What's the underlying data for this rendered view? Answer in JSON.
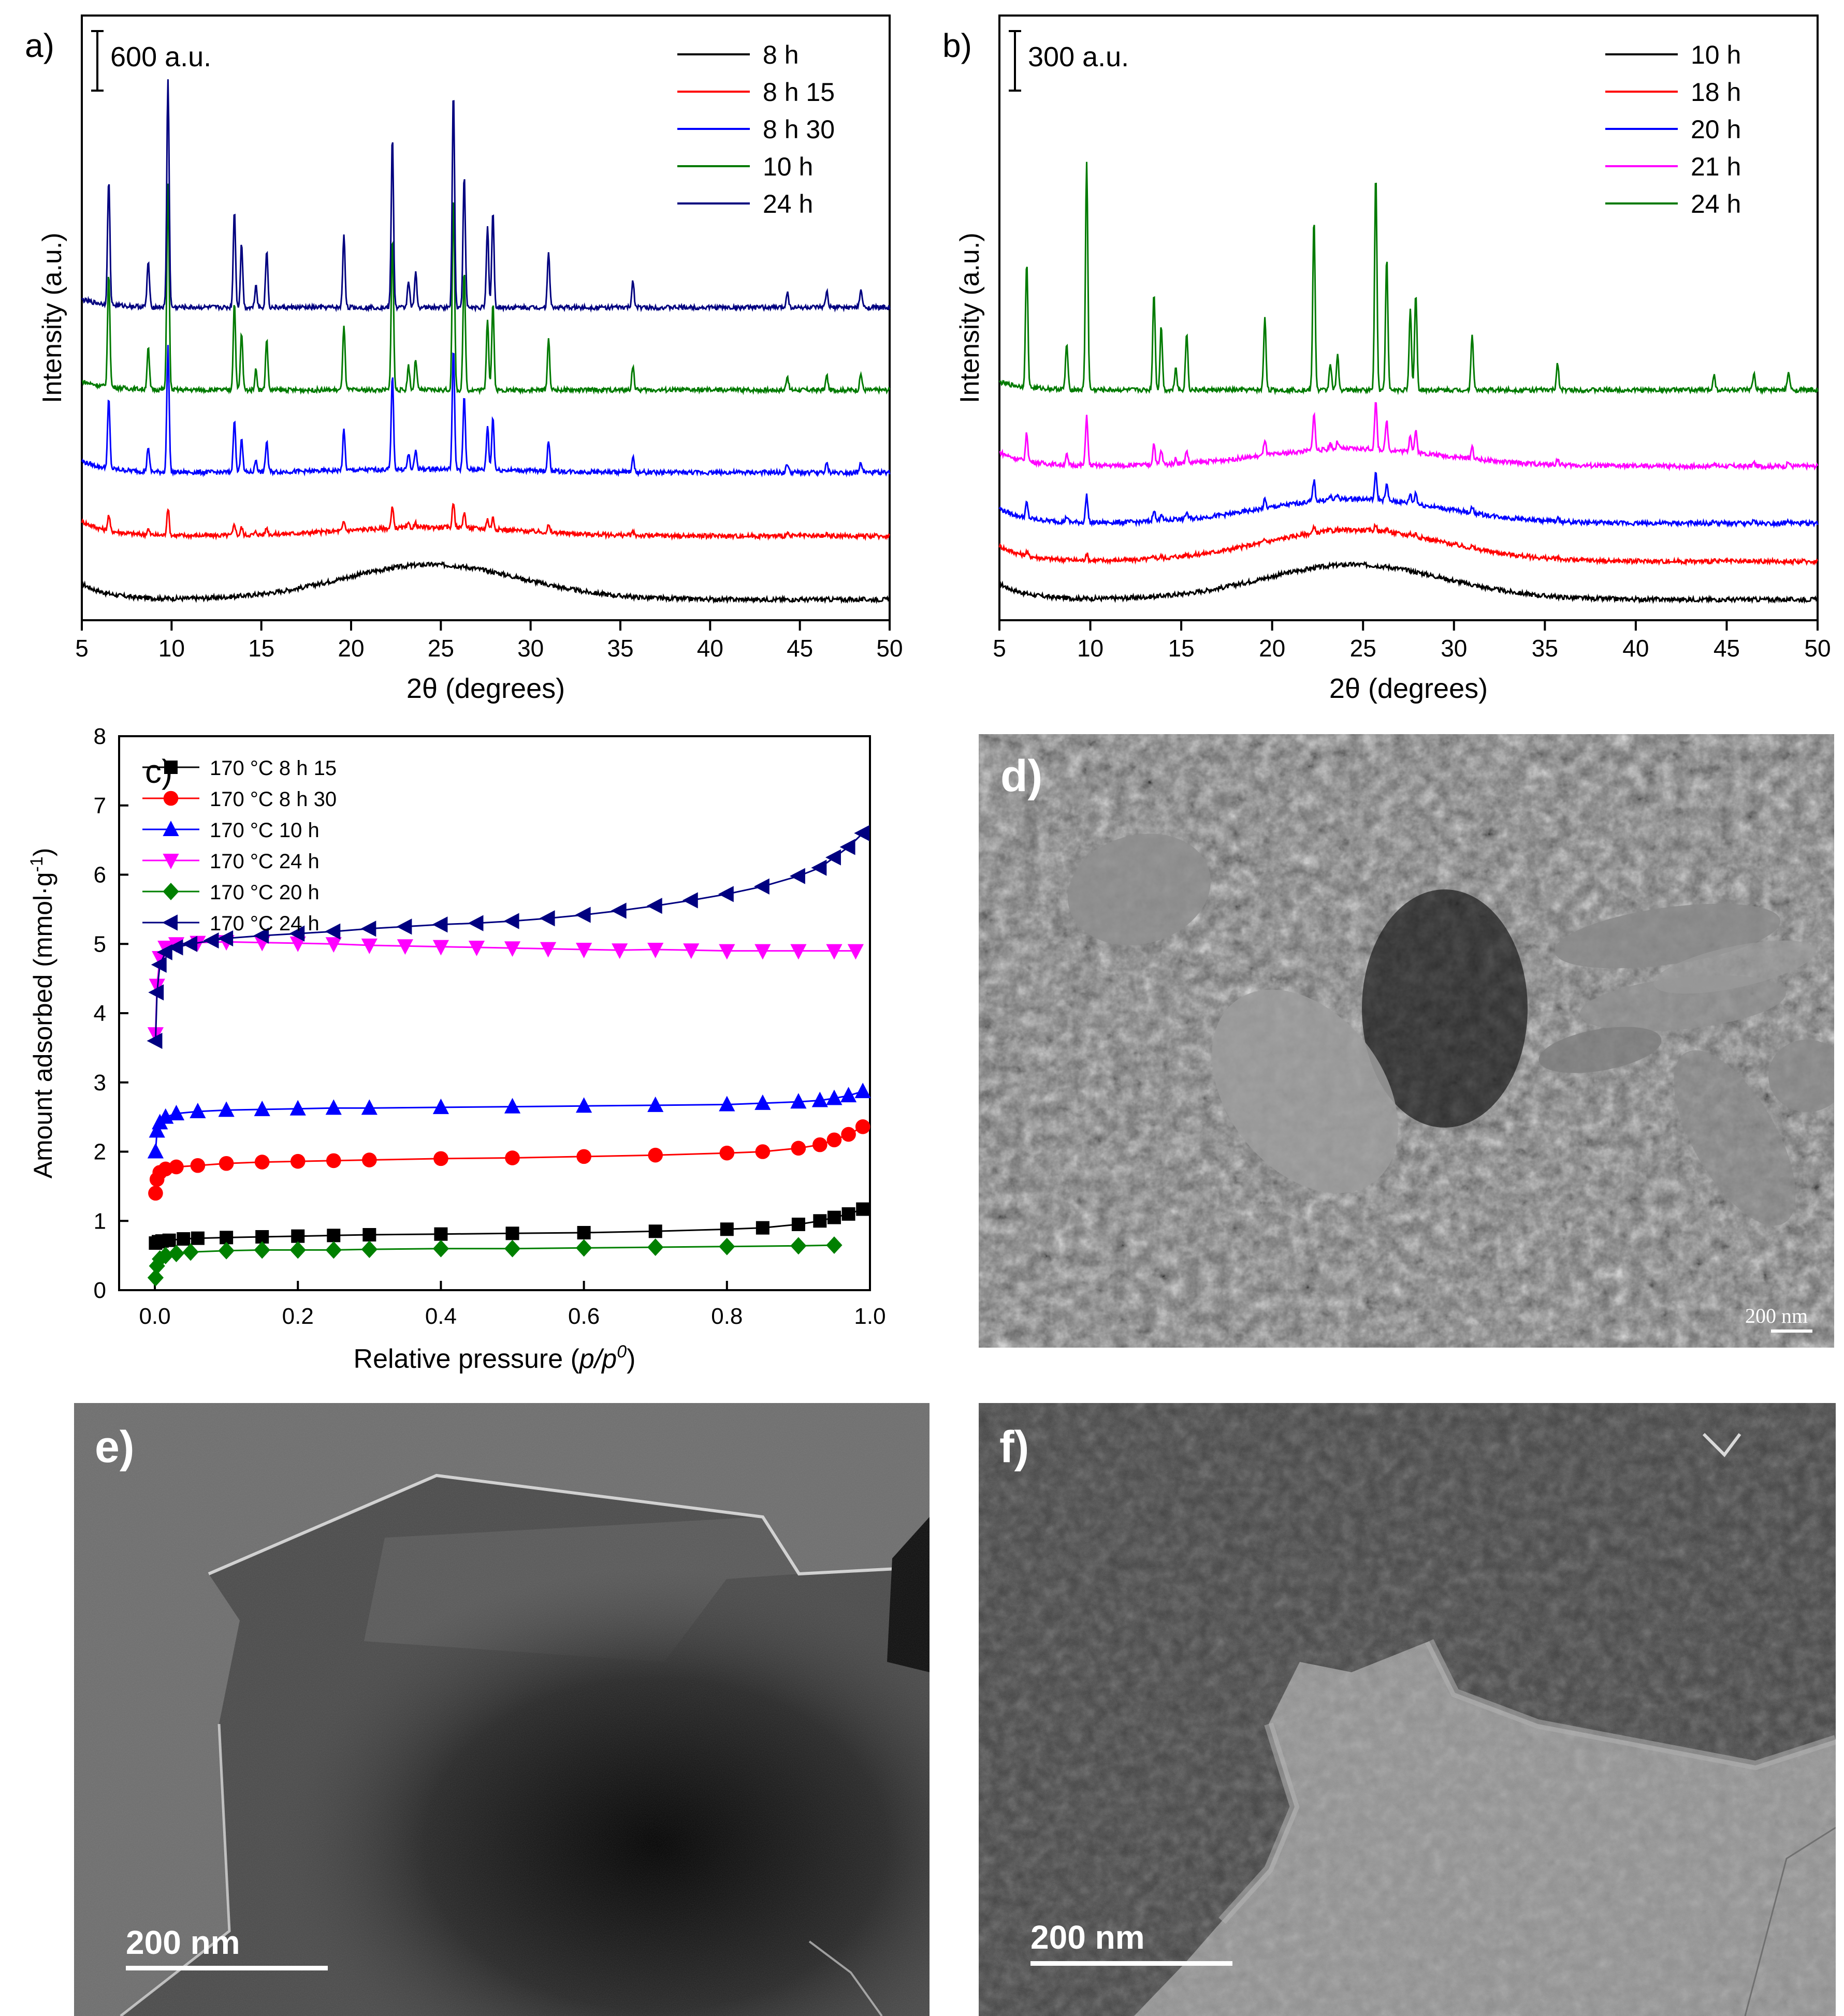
{
  "panels": {
    "a": {
      "letter": "a)"
    },
    "b": {
      "letter": "b)"
    },
    "c": {
      "letter": "c)"
    },
    "d": {
      "letter": "d)",
      "scalebar": "200 nm"
    },
    "e": {
      "letter": "e)",
      "scalebar": "200 nm"
    },
    "f": {
      "letter": "f)",
      "scalebar": "200 nm"
    }
  },
  "colors": {
    "black": "#000000",
    "red": "#ff0000",
    "blue": "#0000ff",
    "green": "#007a00",
    "navy": "#00007f",
    "magenta": "#ff00ff",
    "darkgreen": "#008000",
    "navy2": "#000080"
  },
  "chart_data": [
    {
      "id": "a",
      "type": "line",
      "xlabel": "2θ (degrees)",
      "ylabel": "Intensity (a.u.)",
      "xlim": [
        5,
        50
      ],
      "xticks": [
        5,
        10,
        15,
        20,
        25,
        30,
        35,
        40,
        45,
        50
      ],
      "scale_bar_label": "600 a.u.",
      "legend_position": "top-right",
      "peaks_2theta": [
        6.5,
        8.7,
        9.8,
        13.5,
        13.9,
        14.7,
        15.3,
        19.6,
        22.3,
        23.2,
        23.6,
        25.7,
        26.3,
        27.6,
        27.9,
        31.0,
        35.7,
        44.3,
        46.5,
        48.4
      ],
      "peak_heights_relative": [
        0.55,
        0.2,
        1.0,
        0.43,
        0.28,
        0.1,
        0.25,
        0.32,
        0.75,
        0.12,
        0.15,
        0.95,
        0.58,
        0.35,
        0.42,
        0.25,
        0.12,
        0.07,
        0.07,
        0.08
      ],
      "series": [
        {
          "name": "8 h",
          "color": "#000000",
          "offset": 0,
          "peak_scale": 0,
          "amorphous": 1.0
        },
        {
          "name": "8 h 15",
          "color": "#ff0000",
          "offset": 1,
          "peak_scale": 0.12,
          "amorphous": 0.25
        },
        {
          "name": "8 h 30",
          "color": "#0000ff",
          "offset": 2,
          "peak_scale": 0.55,
          "amorphous": 0.1
        },
        {
          "name": "10 h",
          "color": "#007a00",
          "offset": 3.3,
          "peak_scale": 0.9,
          "amorphous": 0.0
        },
        {
          "name": "24 h",
          "color": "#00007f",
          "offset": 4.6,
          "peak_scale": 1.0,
          "amorphous": 0.0
        }
      ]
    },
    {
      "id": "b",
      "type": "line",
      "xlabel": "2θ (degrees)",
      "ylabel": "Intensity (a.u.)",
      "xlim": [
        5,
        50
      ],
      "xticks": [
        5,
        10,
        15,
        20,
        25,
        30,
        35,
        40,
        45,
        50
      ],
      "scale_bar_label": "300 a.u.",
      "legend_position": "top-right",
      "series": [
        {
          "name": "10 h",
          "color": "#000000",
          "offset": 0,
          "peak_scale": 0,
          "amorphous": 1.0
        },
        {
          "name": "18 h",
          "color": "#ff0000",
          "offset": 0.6,
          "peak_scale": 0.03,
          "amorphous": 0.9
        },
        {
          "name": "20 h",
          "color": "#0000ff",
          "offset": 1.2,
          "peak_scale": 0.12,
          "amorphous": 0.7
        },
        {
          "name": "21 h",
          "color": "#ff00ff",
          "offset": 2.1,
          "peak_scale": 0.22,
          "amorphous": 0.5
        },
        {
          "name": "24 h",
          "color": "#007a00",
          "offset": 3.3,
          "peak_scale": 1.0,
          "amorphous": 0.0
        }
      ]
    },
    {
      "id": "c",
      "type": "line",
      "xlabel": "Relative pressure (p/p0)",
      "ylabel": "Amount adsorbed (mmol·g⁻¹)",
      "xlim": [
        -0.05,
        1.0
      ],
      "ylim": [
        0,
        8
      ],
      "xticks": [
        0.0,
        0.2,
        0.4,
        0.6,
        0.8,
        1.0
      ],
      "yticks": [
        0,
        1,
        2,
        3,
        4,
        5,
        6,
        7,
        8
      ],
      "legend_position": "top-left",
      "series": [
        {
          "name": "170 °C 8 h 15",
          "color": "#000000",
          "marker": "square",
          "x": [
            0.001,
            0.005,
            0.01,
            0.02,
            0.04,
            0.06,
            0.1,
            0.15,
            0.2,
            0.25,
            0.3,
            0.4,
            0.5,
            0.6,
            0.7,
            0.8,
            0.85,
            0.9,
            0.93,
            0.95,
            0.97,
            0.99
          ],
          "y": [
            0.68,
            0.7,
            0.71,
            0.72,
            0.74,
            0.75,
            0.76,
            0.77,
            0.78,
            0.79,
            0.8,
            0.81,
            0.82,
            0.83,
            0.85,
            0.88,
            0.9,
            0.95,
            1.0,
            1.05,
            1.1,
            1.17
          ]
        },
        {
          "name": "170 °C 8 h 30",
          "color": "#ff0000",
          "marker": "circle",
          "x": [
            0.001,
            0.003,
            0.007,
            0.015,
            0.03,
            0.06,
            0.1,
            0.15,
            0.2,
            0.25,
            0.3,
            0.4,
            0.5,
            0.6,
            0.7,
            0.8,
            0.85,
            0.9,
            0.93,
            0.95,
            0.97,
            0.99
          ],
          "y": [
            1.4,
            1.6,
            1.7,
            1.75,
            1.78,
            1.8,
            1.83,
            1.85,
            1.86,
            1.87,
            1.88,
            1.9,
            1.91,
            1.93,
            1.95,
            1.98,
            2.0,
            2.05,
            2.1,
            2.17,
            2.25,
            2.36
          ]
        },
        {
          "name": "170 °C 10 h",
          "color": "#0000ff",
          "marker": "triangle-up",
          "x": [
            0.001,
            0.003,
            0.007,
            0.015,
            0.03,
            0.06,
            0.1,
            0.15,
            0.2,
            0.25,
            0.3,
            0.4,
            0.5,
            0.6,
            0.7,
            0.8,
            0.85,
            0.9,
            0.93,
            0.95,
            0.97,
            0.99
          ],
          "y": [
            2.0,
            2.3,
            2.42,
            2.5,
            2.55,
            2.58,
            2.6,
            2.61,
            2.62,
            2.63,
            2.63,
            2.64,
            2.65,
            2.66,
            2.67,
            2.68,
            2.7,
            2.72,
            2.74,
            2.77,
            2.81,
            2.87
          ]
        },
        {
          "name": "170 °C 24 h",
          "color": "#ff00ff",
          "marker": "triangle-down",
          "x": [
            0.001,
            0.003,
            0.007,
            0.015,
            0.03,
            0.06,
            0.1,
            0.15,
            0.2,
            0.25,
            0.3,
            0.35,
            0.4,
            0.45,
            0.5,
            0.55,
            0.6,
            0.65,
            0.7,
            0.75,
            0.8,
            0.85,
            0.9,
            0.95,
            0.98
          ],
          "y": [
            3.7,
            4.4,
            4.8,
            4.95,
            5.0,
            5.02,
            5.03,
            5.02,
            5.01,
            5.0,
            4.98,
            4.97,
            4.96,
            4.95,
            4.94,
            4.93,
            4.92,
            4.91,
            4.92,
            4.91,
            4.9,
            4.9,
            4.9,
            4.9,
            4.9
          ]
        },
        {
          "name": "170 °C 20 h",
          "color": "#008000",
          "marker": "diamond",
          "x": [
            0.001,
            0.003,
            0.007,
            0.015,
            0.03,
            0.05,
            0.1,
            0.15,
            0.2,
            0.25,
            0.3,
            0.4,
            0.5,
            0.6,
            0.7,
            0.8,
            0.9,
            0.95
          ],
          "y": [
            0.18,
            0.35,
            0.45,
            0.5,
            0.53,
            0.55,
            0.57,
            0.58,
            0.58,
            0.58,
            0.59,
            0.6,
            0.6,
            0.61,
            0.62,
            0.63,
            0.64,
            0.65
          ]
        },
        {
          "name": "170 °C 24 h",
          "color": "#000080",
          "marker": "triangle-left",
          "x": [
            0.001,
            0.003,
            0.007,
            0.015,
            0.03,
            0.05,
            0.08,
            0.1,
            0.15,
            0.2,
            0.25,
            0.3,
            0.35,
            0.4,
            0.45,
            0.5,
            0.55,
            0.6,
            0.65,
            0.7,
            0.75,
            0.8,
            0.85,
            0.9,
            0.93,
            0.95,
            0.97,
            0.99
          ],
          "y": [
            3.6,
            4.3,
            4.7,
            4.88,
            4.95,
            5.0,
            5.05,
            5.08,
            5.12,
            5.15,
            5.18,
            5.22,
            5.25,
            5.28,
            5.3,
            5.33,
            5.37,
            5.42,
            5.48,
            5.55,
            5.63,
            5.72,
            5.83,
            5.98,
            6.1,
            6.25,
            6.4,
            6.6
          ]
        }
      ]
    }
  ]
}
